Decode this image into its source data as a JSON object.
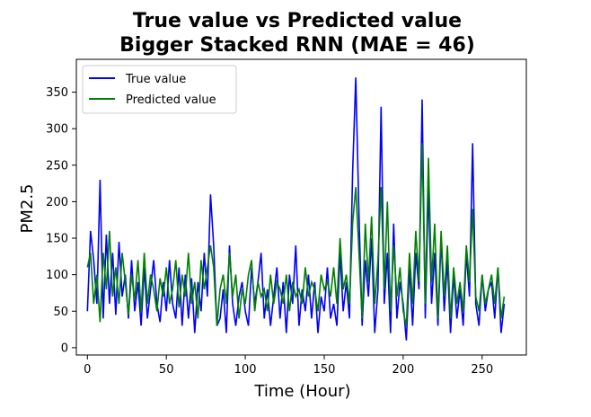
{
  "chart_data": {
    "type": "line",
    "title": [
      "True value vs Predicted value",
      "Bigger Stacked RNN (MAE = 46)"
    ],
    "xlabel": "Time (Hour)",
    "ylabel": "PM2.5",
    "xlim": [
      -7,
      278
    ],
    "ylim": [
      -10,
      395
    ],
    "xticks": [
      0,
      50,
      100,
      150,
      200,
      250
    ],
    "yticks": [
      0,
      50,
      100,
      150,
      200,
      250,
      300,
      350
    ],
    "grid": false,
    "legend": "top-left",
    "colors": {
      "true": "#0000ff",
      "pred": "#008000"
    },
    "series": [
      {
        "name": "True value",
        "color": "#0000ff",
        "x": [
          0,
          2,
          4,
          6,
          8,
          10,
          12,
          14,
          16,
          18,
          20,
          22,
          24,
          26,
          28,
          30,
          32,
          34,
          36,
          38,
          40,
          42,
          44,
          46,
          48,
          50,
          52,
          54,
          56,
          58,
          60,
          62,
          64,
          66,
          68,
          70,
          72,
          74,
          76,
          78,
          80,
          82,
          84,
          86,
          88,
          90,
          92,
          94,
          96,
          98,
          100,
          102,
          104,
          106,
          108,
          110,
          112,
          114,
          116,
          118,
          120,
          122,
          124,
          126,
          128,
          130,
          132,
          134,
          136,
          138,
          140,
          142,
          144,
          146,
          148,
          150,
          152,
          154,
          156,
          158,
          160,
          162,
          164,
          166,
          168,
          170,
          172,
          174,
          176,
          178,
          180,
          182,
          184,
          186,
          188,
          190,
          192,
          194,
          196,
          198,
          200,
          202,
          204,
          206,
          208,
          210,
          212,
          214,
          216,
          218,
          220,
          222,
          224,
          226,
          228,
          230,
          232,
          234,
          236,
          238,
          240,
          242,
          244,
          246,
          248,
          250,
          252,
          254,
          256,
          258,
          260,
          262,
          264
        ],
        "y": [
          50,
          160,
          120,
          60,
          230,
          40,
          155,
          60,
          130,
          45,
          145,
          70,
          100,
          40,
          120,
          50,
          90,
          30,
          110,
          40,
          80,
          120,
          60,
          35,
          90,
          50,
          120,
          60,
          40,
          110,
          30,
          100,
          40,
          95,
          20,
          90,
          50,
          130,
          70,
          210,
          140,
          30,
          40,
          80,
          20,
          140,
          60,
          30,
          70,
          90,
          50,
          30,
          110,
          60,
          90,
          130,
          40,
          80,
          30,
          70,
          110,
          40,
          90,
          20,
          100,
          60,
          140,
          30,
          80,
          50,
          100,
          40,
          90,
          20,
          70,
          50,
          110,
          40,
          60,
          30,
          130,
          50,
          90,
          40,
          240,
          370,
          180,
          30,
          120,
          70,
          150,
          20,
          80,
          330,
          60,
          130,
          20,
          170,
          40,
          90,
          60,
          10,
          110,
          30,
          130,
          80,
          340,
          40,
          220,
          60,
          130,
          30,
          150,
          50,
          120,
          20,
          100,
          40,
          80,
          30,
          130,
          70,
          280,
          60,
          30,
          100,
          50,
          80,
          90,
          40,
          110,
          20,
          60
        ]
      },
      {
        "name": "Predicted value",
        "color": "#008000",
        "x": [
          0,
          2,
          4,
          6,
          8,
          10,
          12,
          14,
          16,
          18,
          20,
          22,
          24,
          26,
          28,
          30,
          32,
          34,
          36,
          38,
          40,
          42,
          44,
          46,
          48,
          50,
          52,
          54,
          56,
          58,
          60,
          62,
          64,
          66,
          68,
          70,
          72,
          74,
          76,
          78,
          80,
          82,
          84,
          86,
          88,
          90,
          92,
          94,
          96,
          98,
          100,
          102,
          104,
          106,
          108,
          110,
          112,
          114,
          116,
          118,
          120,
          122,
          124,
          126,
          128,
          130,
          132,
          134,
          136,
          138,
          140,
          142,
          144,
          146,
          148,
          150,
          152,
          154,
          156,
          158,
          160,
          162,
          164,
          166,
          168,
          170,
          172,
          174,
          176,
          178,
          180,
          182,
          184,
          186,
          188,
          190,
          192,
          194,
          196,
          198,
          200,
          202,
          204,
          206,
          208,
          210,
          212,
          214,
          216,
          218,
          220,
          222,
          224,
          226,
          228,
          230,
          232,
          234,
          236,
          238,
          240,
          242,
          244,
          246,
          248,
          250,
          252,
          254,
          256,
          258,
          260,
          262,
          264
        ],
        "y": [
          110,
          130,
          60,
          100,
          35,
          130,
          80,
          160,
          70,
          110,
          60,
          130,
          90,
          45,
          100,
          65,
          120,
          50,
          130,
          60,
          100,
          80,
          50,
          95,
          70,
          110,
          60,
          80,
          120,
          55,
          100,
          70,
          130,
          60,
          90,
          40,
          120,
          80,
          110,
          140,
          110,
          30,
          80,
          100,
          60,
          130,
          70,
          100,
          40,
          80,
          60,
          100,
          120,
          50,
          90,
          70,
          80,
          50,
          100,
          60,
          90,
          80,
          60,
          100,
          50,
          90,
          70,
          80,
          60,
          110,
          70,
          90,
          80,
          50,
          100,
          80,
          90,
          70,
          110,
          60,
          150,
          80,
          100,
          60,
          170,
          220,
          130,
          40,
          170,
          90,
          180,
          60,
          120,
          220,
          80,
          200,
          50,
          140,
          70,
          110,
          50,
          30,
          130,
          60,
          160,
          90,
          280,
          60,
          260,
          90,
          170,
          40,
          160,
          70,
          140,
          40,
          110,
          60,
          90,
          50,
          140,
          90,
          190,
          70,
          50,
          100,
          60,
          80,
          100,
          60,
          110,
          40,
          70
        ]
      }
    ]
  }
}
